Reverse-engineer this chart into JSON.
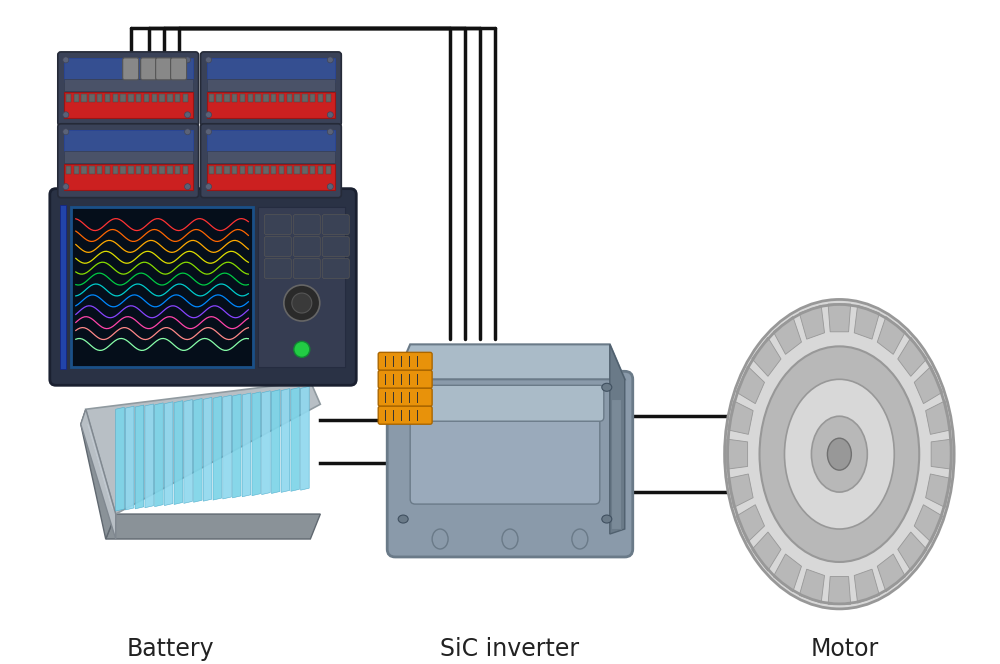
{
  "background_color": "#ffffff",
  "labels": {
    "battery": "Battery",
    "inverter": "SiC inverter",
    "motor": "Motor"
  },
  "label_fontsize": 17,
  "wire_color": "#111111",
  "wire_linewidth": 2.5,
  "orange_color": "#e8920a",
  "inv_color_main": "#8a9aaa",
  "inv_color_light": "#aabbc8",
  "inv_color_dark": "#6a7a88",
  "bat_gray": "#b8bfc5",
  "bat_gray_dark": "#8a9298",
  "bat_blue": "#7dd4e8",
  "bat_blue_dark": "#4aaccc",
  "motor_light": "#d8d8d8",
  "motor_mid": "#b8b8b8",
  "motor_dark": "#989898",
  "logger_dark": "#2a3245",
  "logger_mid": "#363d52",
  "module_gray": "#4a5268",
  "module_red": "#cc2020",
  "module_blue_tr": "#3355aa"
}
